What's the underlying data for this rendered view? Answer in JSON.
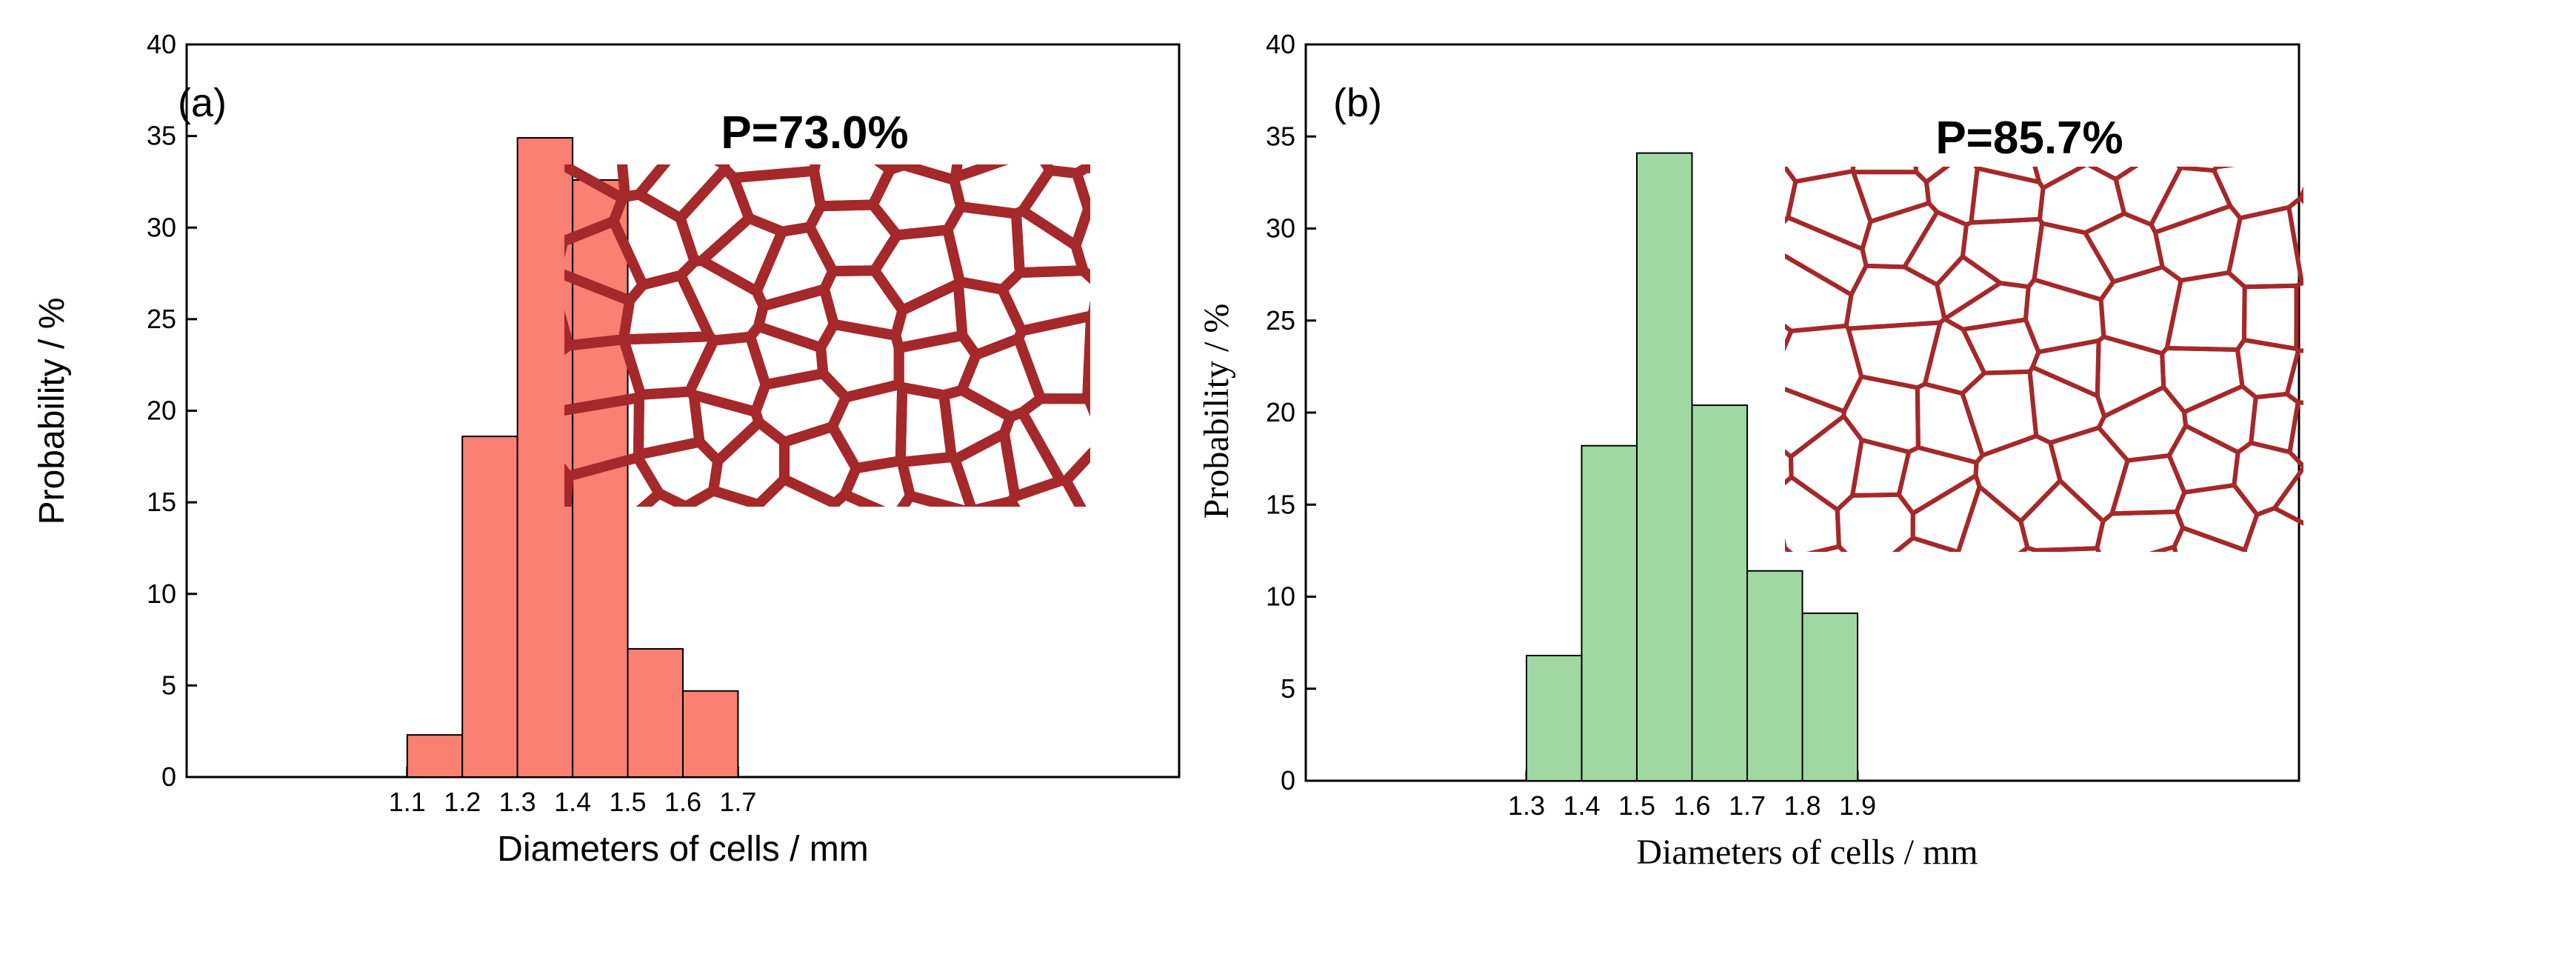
{
  "chart_data": [
    {
      "type": "bar",
      "panel_label": "(a)",
      "xlabel": "Diameters of cells / mm",
      "ylabel": "Probability / %",
      "bin_edges": [
        1.1,
        1.2,
        1.3,
        1.4,
        1.5,
        1.6,
        1.7
      ],
      "values": [
        2.3,
        18.6,
        34.9,
        32.6,
        7.0,
        4.7
      ],
      "x_ticks": [
        "1.1",
        "1.2",
        "1.3",
        "1.4",
        "1.5",
        "1.6",
        "1.7"
      ],
      "y_ticks": [
        "0",
        "5",
        "10",
        "15",
        "20",
        "25",
        "30",
        "35",
        "40"
      ],
      "ylim": [
        0,
        40
      ],
      "xlim": [
        0.7,
        2.5
      ],
      "inset_title": "P=73.0%",
      "bar_color": "#f98072",
      "lattice_color": "#a5282a",
      "inset_image": "voronoi-lattice-thick-struts"
    },
    {
      "type": "bar",
      "panel_label": "(b)",
      "xlabel": "Diameters of cells / mm",
      "ylabel": "Probability / %",
      "bin_edges": [
        1.3,
        1.4,
        1.5,
        1.6,
        1.7,
        1.8,
        1.9
      ],
      "values": [
        6.8,
        18.2,
        34.1,
        20.4,
        11.4,
        9.1
      ],
      "x_ticks": [
        "1.3",
        "1.4",
        "1.5",
        "1.6",
        "1.7",
        "1.8",
        "1.9"
      ],
      "y_ticks": [
        "0",
        "5",
        "10",
        "15",
        "20",
        "25",
        "30",
        "35",
        "40"
      ],
      "ylim": [
        0,
        40
      ],
      "xlim": [
        0.9,
        2.7
      ],
      "inset_title": "P=85.7%",
      "bar_color": "#a0d8a2",
      "lattice_color": "#a5282a",
      "inset_image": "voronoi-lattice-thin-struts"
    }
  ]
}
